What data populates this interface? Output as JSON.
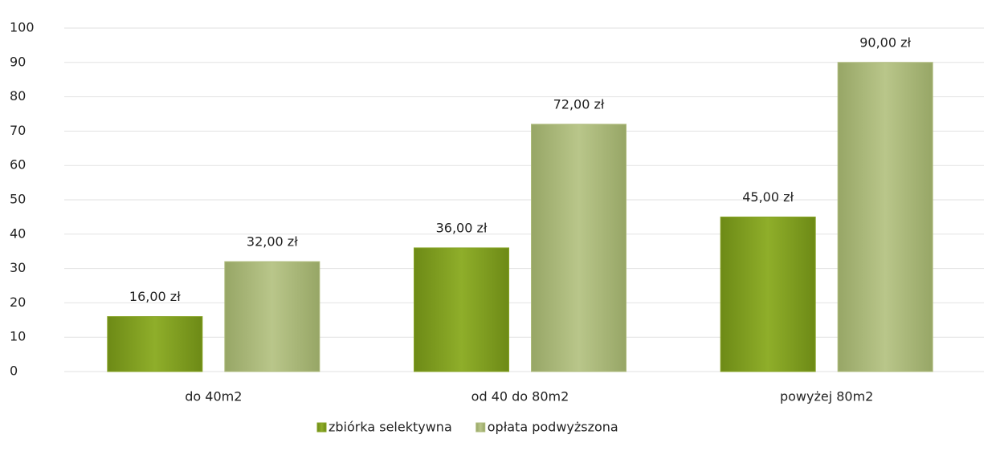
{
  "chart_data": {
    "type": "bar",
    "categories": [
      "do 40m2",
      "od 40 do 80m2",
      "powyżej 80m2"
    ],
    "series": [
      {
        "name": "zbiórka selektywna",
        "color": "#86a324",
        "values": [
          16,
          36,
          45
        ],
        "value_labels": [
          "16,00 zł",
          "36,00 zł",
          "45,00 zł"
        ]
      },
      {
        "name": "opłata podwyższona",
        "color": "#aebb7c",
        "values": [
          32,
          72,
          90
        ],
        "value_labels": [
          "32,00 zł",
          "72,00 zł",
          "90,00 zł"
        ]
      }
    ],
    "ylim": [
      0,
      100
    ],
    "yticks": [
      0,
      10,
      20,
      30,
      40,
      50,
      60,
      70,
      80,
      90,
      100
    ],
    "grid": true,
    "legend": "bottom"
  }
}
